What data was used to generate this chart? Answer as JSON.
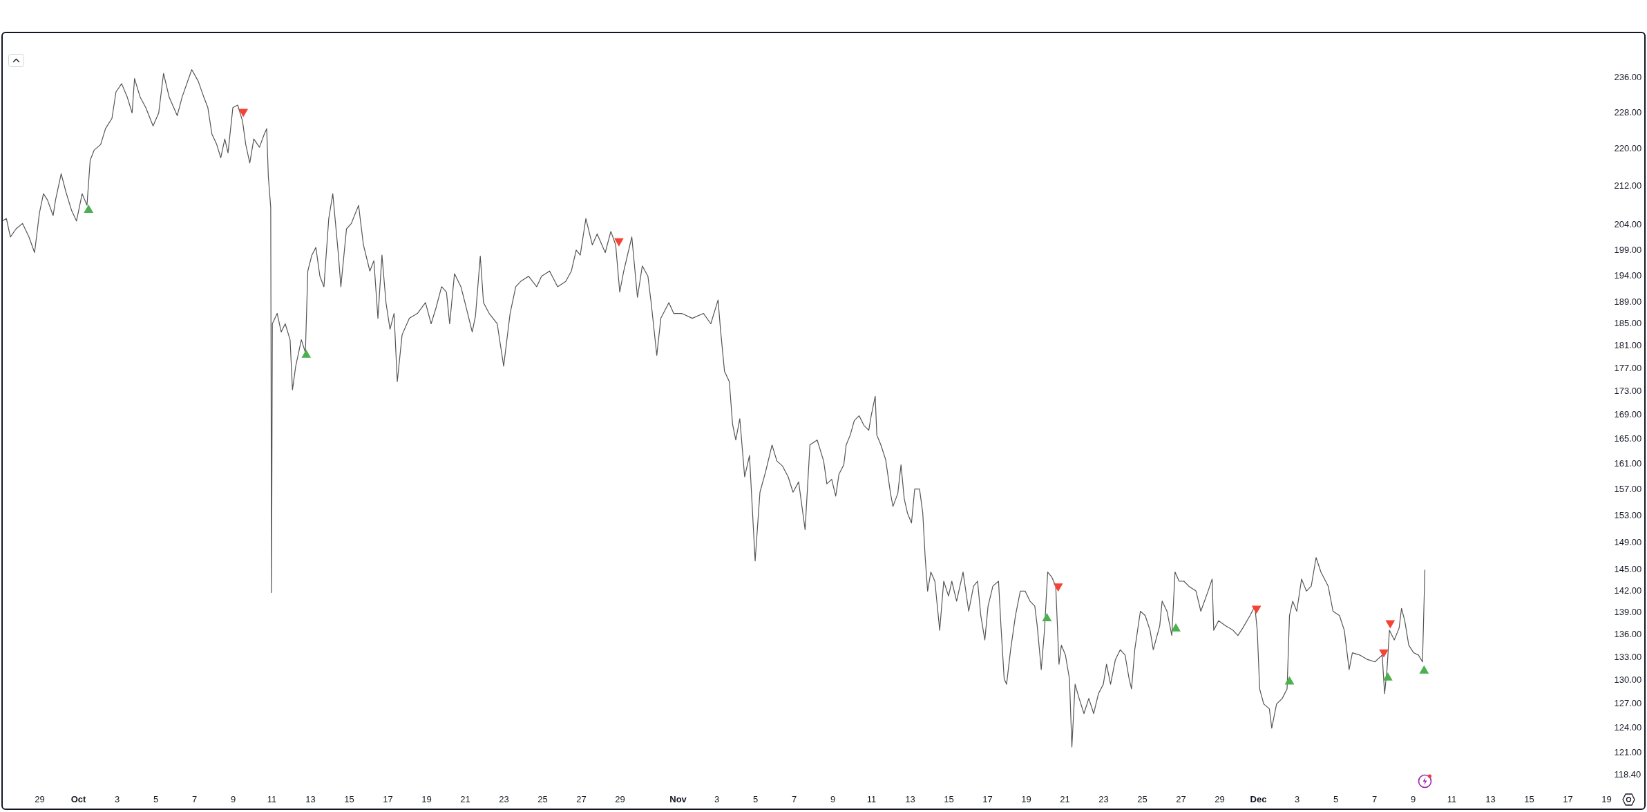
{
  "chart_data": {
    "type": "line",
    "log": "y",
    "xlim": [
      "--09-27T01:40",
      "--12-19"
    ],
    "ylim": [
      118.4,
      246.7
    ],
    "xticks": [
      {
        "value": "--09-29",
        "label": "29"
      },
      {
        "value": "--10-01",
        "label": "Oct"
      },
      {
        "value": "--10-03",
        "label": "3"
      },
      {
        "value": "--10-05",
        "label": "5"
      },
      {
        "value": "--10-07",
        "label": "7"
      },
      {
        "value": "--10-09",
        "label": "9"
      },
      {
        "value": "--10-11",
        "label": "11"
      },
      {
        "value": "--10-13",
        "label": "13"
      },
      {
        "value": "--10-15",
        "label": "15"
      },
      {
        "value": "--10-17",
        "label": "17"
      },
      {
        "value": "--10-19",
        "label": "19"
      },
      {
        "value": "--10-21",
        "label": "21"
      },
      {
        "value": "--10-23",
        "label": "23"
      },
      {
        "value": "--10-25",
        "label": "25"
      },
      {
        "value": "--10-27",
        "label": "27"
      },
      {
        "value": "--10-29",
        "label": "29"
      },
      {
        "value": "--11-01",
        "label": "Nov"
      },
      {
        "value": "--11-03",
        "label": "3"
      },
      {
        "value": "--11-05",
        "label": "5"
      },
      {
        "value": "--11-07",
        "label": "7"
      },
      {
        "value": "--11-09",
        "label": "9"
      },
      {
        "value": "--11-11",
        "label": "11"
      },
      {
        "value": "--11-13",
        "label": "13"
      },
      {
        "value": "--11-15",
        "label": "15"
      },
      {
        "value": "--11-17",
        "label": "17"
      },
      {
        "value": "--11-19",
        "label": "19"
      },
      {
        "value": "--11-21",
        "label": "21"
      },
      {
        "value": "--11-23",
        "label": "23"
      },
      {
        "value": "--11-25",
        "label": "25"
      },
      {
        "value": "--11-27",
        "label": "27"
      },
      {
        "value": "--11-29",
        "label": "29"
      },
      {
        "value": "--12-01",
        "label": "Dec"
      },
      {
        "value": "--12-03",
        "label": "3"
      },
      {
        "value": "--12-05",
        "label": "5"
      },
      {
        "value": "--12-07",
        "label": "7"
      },
      {
        "value": "--12-09",
        "label": "9"
      },
      {
        "value": "--12-11",
        "label": "11"
      },
      {
        "value": "--12-13",
        "label": "13"
      },
      {
        "value": "--12-15",
        "label": "15"
      },
      {
        "value": "--12-17",
        "label": "17"
      },
      {
        "value": "--12-19",
        "label": "19"
      }
    ],
    "yticks": [
      {
        "value": 236,
        "label": "236.00"
      },
      {
        "value": 228,
        "label": "228.00"
      },
      {
        "value": 220,
        "label": "220.00"
      },
      {
        "value": 212,
        "label": "212.00"
      },
      {
        "value": 204,
        "label": "204.00"
      },
      {
        "value": 199,
        "label": "199.00"
      },
      {
        "value": 194,
        "label": "194.00"
      },
      {
        "value": 189,
        "label": "189.00"
      },
      {
        "value": 185,
        "label": "185.00"
      },
      {
        "value": 181,
        "label": "181.00"
      },
      {
        "value": 177,
        "label": "177.00"
      },
      {
        "value": 173,
        "label": "173.00"
      },
      {
        "value": 169,
        "label": "169.00"
      },
      {
        "value": 165,
        "label": "165.00"
      },
      {
        "value": 161,
        "label": "161.00"
      },
      {
        "value": 157,
        "label": "157.00"
      },
      {
        "value": 153,
        "label": "153.00"
      },
      {
        "value": 149,
        "label": "149.00"
      },
      {
        "value": 145,
        "label": "145.00"
      },
      {
        "value": 142,
        "label": "142.00"
      },
      {
        "value": 139,
        "label": "139.00"
      },
      {
        "value": 136,
        "label": "136.00"
      },
      {
        "value": 133,
        "label": "133.00"
      },
      {
        "value": 130,
        "label": "130.00"
      },
      {
        "value": 127,
        "label": "127.00"
      },
      {
        "value": 124,
        "label": "124.00"
      },
      {
        "value": 121,
        "label": "121.00"
      },
      {
        "value": 118.4,
        "label": "118.40"
      }
    ],
    "series": [
      {
        "color": "#555555",
        "x": [
          "--09-27T02:00",
          "--09-27T07:00",
          "--09-27T12:00",
          "--09-27T19:00",
          "--09-28T03:00",
          "--09-28T11:00",
          "--09-28T18:00",
          "--09-29T00:00",
          "--09-29T05:00",
          "--09-29T10:00",
          "--09-29T17:00",
          "--09-29T20:00",
          "--09-30T03:00",
          "--09-30T09:00",
          "--09-30T16:00",
          "--09-30T22:00",
          "--10-01T05:00",
          "--10-01T11:00",
          "--10-01T15:00",
          "--10-01T20:00",
          "--10-02T04:00",
          "--10-02T10:00",
          "--10-02T18:00",
          "--10-02T23:00",
          "--10-03T06:00",
          "--10-03T13:00",
          "--10-03T19:00",
          "--10-03T22:00",
          "--10-04T05:00",
          "--10-04T12:00",
          "--10-04T21:00",
          "--10-05T04:00",
          "--10-05T10:00",
          "--10-05T17:00",
          "--10-06T03:00",
          "--10-06T09:00",
          "--10-06T21:00",
          "--10-07T05:00",
          "--10-07T12:00",
          "--10-07T17:00",
          "--10-07T22:00",
          "--10-08T04:00",
          "--10-08T09:00",
          "--10-08T14:00",
          "--10-08T18:00",
          "--10-09T00:00",
          "--10-09T06:00",
          "--10-09T12:00",
          "--10-09T16:00",
          "--10-09T21:00",
          "--10-10T02:00",
          "--10-10T09:00",
          "--10-10T15:00",
          "--10-10T18:00",
          "--10-10T20:00",
          "--10-10T23:00",
          "--10-11T00:00",
          "--10-11T01:00",
          "--10-11T07:00",
          "--10-11T12:00",
          "--10-11T17:00",
          "--10-11T23:00",
          "--10-12T02:00",
          "--10-12T06:00",
          "--10-12T13:00",
          "--10-12T18:00",
          "--10-12T21:00",
          "--10-13T02:00",
          "--10-13T07:00",
          "--10-13T12:00",
          "--10-13T17:00",
          "--10-13T23:00",
          "--10-14T04:00",
          "--10-14T11:00",
          "--10-14T14:00",
          "--10-14T21:00",
          "--10-15T03:00",
          "--10-15T12:00",
          "--10-15T18:00",
          "--10-16T02:00",
          "--10-16T07:00",
          "--10-16T12:00",
          "--10-16T17:00",
          "--10-16T22:00",
          "--10-17T03:00",
          "--10-17T08:00",
          "--10-17T12:00",
          "--10-17T18:00",
          "--10-18T03:00",
          "--10-18T13:00",
          "--10-18T23:00",
          "--10-19T06:00",
          "--10-19T12:00",
          "--10-19T19:00",
          "--10-20T01:00",
          "--10-20T05:00",
          "--10-20T11:00",
          "--10-20T19:00",
          "--10-21T00:00",
          "--10-21T09:00",
          "--10-21T13:00",
          "--10-21T19:00",
          "--10-21T23:00",
          "--10-22T06:00",
          "--10-22T16:00",
          "--10-23T00:00",
          "--10-23T08:00",
          "--10-23T15:00",
          "--10-23T21:00",
          "--10-24T07:00",
          "--10-24T17:00",
          "--10-24T23:00",
          "--10-25T09:00",
          "--10-25T19:00",
          "--10-26T05:00",
          "--10-26T12:00",
          "--10-26T18:00",
          "--10-26T23:00",
          "--10-27T06:00",
          "--10-27T14:00",
          "--10-27T20:00",
          "--10-28T06:00",
          "--10-28T13:00",
          "--10-28T19:00",
          "--10-29T00:00",
          "--10-29T05:00",
          "--10-29T15:00",
          "--10-29T22:00",
          "--10-30T04:00",
          "--10-30T11:00",
          "--10-30T15:00",
          "--10-30T22:00",
          "--10-31T03:00",
          "--10-31T13:00",
          "--10-31T19:00",
          "--11-01T05:00",
          "--11-01T18:00",
          "--11-02T08:00",
          "--11-02T17:00",
          "--11-03T02:00",
          "--11-03T05:00",
          "--11-03T10:00",
          "--11-03T16:00",
          "--11-03T20:00",
          "--11-04T00:00",
          "--11-04T05:00",
          "--11-04T11:00",
          "--11-04T17:00",
          "--11-05T00:00",
          "--11-05T06:00",
          "--11-05T13:00",
          "--11-05T21:00",
          "--11-06T03:00",
          "--11-06T10:00",
          "--11-06T17:00",
          "--11-06T23:00",
          "--11-07T06:00",
          "--11-07T14:00",
          "--11-07T20:00",
          "--11-08T05:00",
          "--11-08T13:00",
          "--11-08T17:00",
          "--11-08T23:00",
          "--11-09T04:00",
          "--11-09T08:00",
          "--11-09T14:00",
          "--11-09T17:00",
          "--11-09T22:00",
          "--11-10T03:00",
          "--11-10T09:00",
          "--11-10T15:00",
          "--11-10T21:00",
          "--11-11T00:00",
          "--11-11T05:00",
          "--11-11T07:00",
          "--11-11T12:00",
          "--11-11T18:00",
          "--11-12T00:00",
          "--11-12T03:00",
          "--11-12T09:00",
          "--11-12T13:00",
          "--11-12T17:00",
          "--11-12T21:00",
          "--11-13T02:00",
          "--11-13T06:00",
          "--11-13T12:00",
          "--11-13T16:00",
          "--11-13T19:00",
          "--11-13T22:00",
          "--11-14T02:00",
          "--11-14T07:00",
          "--11-14T13:00",
          "--11-14T18:00",
          "--11-15T00:00",
          "--11-15T04:00",
          "--11-15T10:00",
          "--11-15T18:00",
          "--11-16T01:00",
          "--11-16T07:00",
          "--11-16T12:00",
          "--11-16T16:00",
          "--11-16T21:00",
          "--11-17T01:00",
          "--11-17T07:00",
          "--11-17T14:00",
          "--11-17T17:00",
          "--11-17T21:00",
          "--11-18T00:00",
          "--11-18T05:00",
          "--11-18T11:00",
          "--11-18T17:00",
          "--11-18T23:00",
          "--11-19T05:00",
          "--11-19T11:00",
          "--11-19T14:00",
          "--11-19T19:00",
          "--11-19T23:00",
          "--11-20T03:00",
          "--11-20T08:00",
          "--11-20T13:00",
          "--11-20T17:00",
          "--11-20T20:00",
          "--11-21T01:00",
          "--11-21T06:00",
          "--11-21T09:00",
          "--11-21T13:00",
          "--11-21T18:00",
          "--11-22T00:00",
          "--11-22T06:00",
          "--11-22T12:00",
          "--11-22T18:00",
          "--11-23T00:00",
          "--11-23T04:00",
          "--11-23T09:00",
          "--11-23T15:00",
          "--11-23T21:00",
          "--11-24T03:00",
          "--11-24T08:00",
          "--11-24T11:00",
          "--11-24T15:00",
          "--11-24T22:00",
          "--11-25T04:00",
          "--11-25T10:00",
          "--11-25T14:00",
          "--11-25T22:00",
          "--11-26T01:00",
          "--11-26T07:00",
          "--11-26T13:00",
          "--11-26T17:00",
          "--11-26T22:00",
          "--11-27T04:00",
          "--11-27T10:00",
          "--11-27T19:00",
          "--11-28T01:00",
          "--11-28T10:00",
          "--11-28T15:00",
          "--11-28T17:00",
          "--11-28T23:00",
          "--11-29T08:00",
          "--11-29T17:00",
          "--11-29T23:00",
          "--11-30T05:00",
          "--11-30T14:00",
          "--11-30T20:00",
          "--11-30T23:00",
          "--12-01T02:00",
          "--12-01T07:00",
          "--12-01T14:00",
          "--12-01T17:00",
          "--12-01T23:00",
          "--12-02T06:00",
          "--12-02T12:00",
          "--12-02T15:00",
          "--12-02T19:00",
          "--12-03T00:00",
          "--12-03T06:00",
          "--12-03T12:00",
          "--12-03T18:00",
          "--12-04T00:00",
          "--12-04T06:00",
          "--12-04T15:00",
          "--12-04T21:00",
          "--12-05T05:00",
          "--12-05T11:00",
          "--12-05T17:00",
          "--12-05T21:00",
          "--12-06T06:00",
          "--12-06T16:00",
          "--12-07T01:00",
          "--12-07T10:00",
          "--12-07T13:00",
          "--12-07T16:00",
          "--12-07T19:00",
          "--12-08T01:00",
          "--12-08T07:00",
          "--12-08T10:00",
          "--12-08T14:00",
          "--12-08T19:00",
          "--12-09T01:00",
          "--12-09T07:00",
          "--12-09T12:00",
          "--12-09T15:00"
        ],
        "values": [
          204.7,
          205.2,
          201.5,
          203.1,
          204.2,
          201.5,
          198.4,
          206.3,
          210.3,
          209.0,
          205.8,
          209.0,
          214.5,
          210.6,
          206.8,
          204.7,
          210.3,
          207.9,
          217.4,
          219.6,
          220.8,
          224.3,
          226.6,
          232.6,
          234.5,
          231.4,
          227.8,
          235.7,
          231.4,
          229.0,
          224.9,
          227.8,
          236.9,
          231.4,
          227.2,
          231.4,
          237.8,
          235.1,
          231.4,
          229.0,
          223.1,
          220.8,
          217.9,
          222.0,
          219.0,
          229.0,
          229.6,
          226.0,
          220.8,
          216.8,
          222.0,
          220.2,
          223.1,
          224.3,
          214.0,
          207.4,
          141.7,
          184.9,
          186.8,
          183.4,
          184.9,
          182.0,
          173.2,
          177.3,
          182.0,
          179.7,
          194.8,
          197.9,
          199.4,
          193.8,
          191.8,
          205.2,
          210.3,
          197.9,
          191.8,
          203.1,
          204.2,
          207.9,
          199.9,
          194.8,
          196.8,
          185.9,
          197.9,
          188.8,
          183.9,
          186.8,
          174.6,
          182.9,
          185.9,
          186.8,
          188.8,
          184.9,
          187.8,
          191.8,
          190.8,
          184.9,
          194.3,
          191.8,
          188.8,
          183.4,
          186.3,
          197.7,
          188.8,
          186.8,
          184.9,
          177.3,
          186.8,
          191.8,
          192.8,
          193.8,
          191.8,
          193.8,
          194.8,
          191.8,
          192.8,
          194.8,
          198.9,
          197.9,
          205.2,
          199.9,
          202.1,
          198.4,
          202.6,
          199.9,
          190.8,
          194.8,
          201.5,
          189.8,
          195.8,
          193.8,
          188.8,
          179.2,
          185.9,
          188.8,
          186.8,
          186.8,
          185.9,
          186.8,
          184.9,
          189.3,
          183.9,
          176.4,
          174.6,
          167.4,
          164.8,
          168.3,
          158.9,
          162.3,
          146.2,
          156.5,
          159.7,
          164.0,
          161.4,
          160.6,
          158.9,
          156.5,
          158.1,
          150.8,
          164.0,
          164.8,
          161.4,
          157.8,
          158.5,
          155.9,
          159.3,
          160.8,
          164.0,
          165.6,
          168.0,
          168.8,
          167.2,
          166.4,
          168.8,
          172.1,
          165.6,
          164.0,
          161.6,
          156.3,
          154.3,
          156.3,
          160.8,
          155.5,
          153.3,
          151.8,
          157.0,
          157.0,
          153.3,
          146.7,
          141.9,
          144.6,
          143.3,
          136.5,
          143.3,
          141.2,
          143.3,
          140.5,
          144.6,
          139.1,
          142.6,
          143.3,
          138.5,
          135.2,
          139.8,
          142.6,
          143.3,
          137.1,
          130.1,
          129.4,
          133.9,
          138.5,
          141.9,
          141.9,
          140.5,
          139.8,
          137.1,
          131.3,
          136.5,
          144.6,
          143.9,
          142.6,
          132.0,
          134.5,
          133.2,
          130.1,
          121.6,
          129.4,
          127.6,
          125.7,
          127.6,
          125.7,
          128.2,
          129.4,
          132.0,
          129.4,
          132.6,
          133.9,
          133.2,
          130.1,
          128.8,
          133.9,
          139.1,
          138.5,
          136.5,
          133.9,
          137.1,
          140.5,
          139.1,
          135.8,
          144.6,
          143.3,
          143.3,
          142.6,
          141.9,
          139.1,
          141.9,
          143.6,
          136.5,
          137.8,
          137.1,
          136.5,
          135.8,
          136.8,
          138.5,
          139.8,
          136.5,
          128.8,
          126.9,
          126.3,
          123.9,
          126.9,
          127.6,
          128.8,
          138.5,
          140.5,
          139.1,
          143.6,
          141.9,
          142.6,
          146.7,
          144.6,
          142.6,
          139.1,
          138.5,
          136.5,
          131.3,
          133.5,
          133.2,
          132.6,
          132.3,
          133.2,
          128.2,
          131.3,
          136.5,
          135.2,
          136.8,
          139.5,
          137.8,
          134.5,
          133.5,
          133.2,
          132.3,
          144.9
        ]
      },
      {
        "type": "scatter",
        "marker": "triangle",
        "color": "#4caf50",
        "x": [
          "--10-01T13:00",
          "--10-12T19:00",
          "--11-20T02:00",
          "--11-26T18:00",
          "--12-02T15:00",
          "--12-07T17:00",
          "--12-09T14:00"
        ],
        "values": [
          207.2,
          179.5,
          138.3,
          136.9,
          129.9,
          130.4,
          131.3
        ]
      },
      {
        "type": "scatter",
        "marker": "triangle-down",
        "color": "#f44336",
        "x": [
          "--10-09T13:00",
          "--10-28T23:00",
          "--11-20T16:00",
          "--11-30T22:00",
          "--12-07T12:00",
          "--12-07T20:00"
        ],
        "values": [
          227.8,
          200.4,
          142.4,
          139.3,
          133.4,
          137.3
        ]
      }
    ]
  }
}
